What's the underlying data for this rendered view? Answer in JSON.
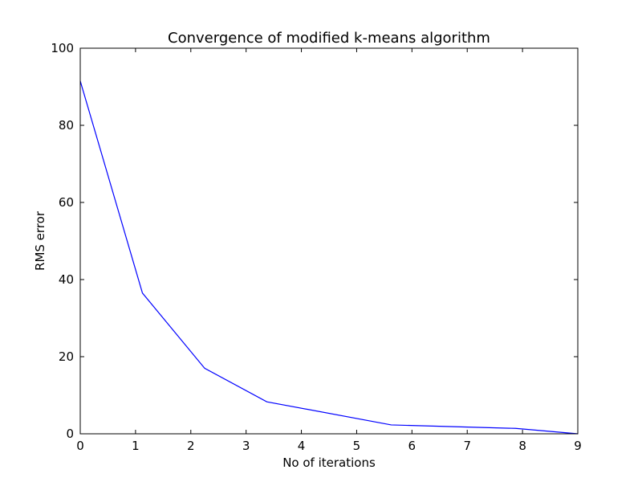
{
  "chart_data": {
    "type": "line",
    "title": "Convergence of modified k-means algorithm",
    "xlabel": "No of iterations",
    "ylabel": "RMS error",
    "xlim": [
      0,
      9
    ],
    "ylim": [
      0,
      100
    ],
    "xticks": [
      0,
      1,
      2,
      3,
      4,
      5,
      6,
      7,
      8,
      9
    ],
    "yticks": [
      0,
      20,
      40,
      60,
      80,
      100
    ],
    "grid": false,
    "legend": "none",
    "series": [
      {
        "color": "#0000ff",
        "x": [
          0,
          1.125,
          2.25,
          3.375,
          5.625,
          7.875,
          9
        ],
        "y": [
          91.5,
          36.5,
          17,
          8.3,
          2.3,
          1.4,
          0
        ]
      }
    ]
  }
}
